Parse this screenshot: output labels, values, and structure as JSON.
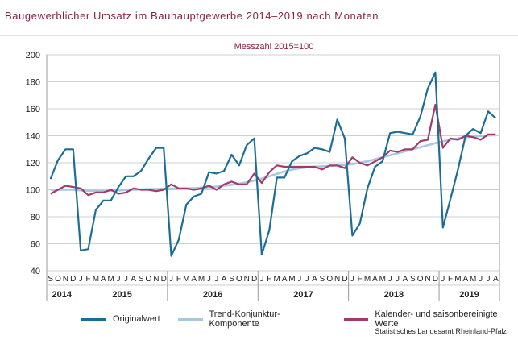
{
  "header": {
    "title": "Baugewerblicher Umsatz im Bauhauptgewerbe 2014–2019 nach Monaten"
  },
  "chart_data": {
    "type": "line",
    "subtitle": "Messzahl 2015=100",
    "ylim": [
      40,
      200
    ],
    "yticks": [
      40,
      60,
      80,
      100,
      120,
      140,
      160,
      180,
      200
    ],
    "grid": true,
    "x": [
      "2014-09",
      "2014-10",
      "2014-11",
      "2014-12",
      "2015-01",
      "2015-02",
      "2015-03",
      "2015-04",
      "2015-05",
      "2015-06",
      "2015-07",
      "2015-08",
      "2015-09",
      "2015-10",
      "2015-11",
      "2015-12",
      "2016-01",
      "2016-02",
      "2016-03",
      "2016-04",
      "2016-05",
      "2016-06",
      "2016-07",
      "2016-08",
      "2016-09",
      "2016-10",
      "2016-11",
      "2016-12",
      "2017-01",
      "2017-02",
      "2017-03",
      "2017-04",
      "2017-05",
      "2017-06",
      "2017-07",
      "2017-08",
      "2017-09",
      "2017-10",
      "2017-11",
      "2017-12",
      "2018-01",
      "2018-02",
      "2018-03",
      "2018-04",
      "2018-05",
      "2018-06",
      "2018-07",
      "2018-08",
      "2018-09",
      "2018-10",
      "2018-11",
      "2018-12",
      "2019-01",
      "2019-02",
      "2019-03",
      "2019-04",
      "2019-05",
      "2019-06",
      "2019-07",
      "2019-08"
    ],
    "month_labels": [
      "S",
      "O",
      "N",
      "D",
      "J",
      "F",
      "M",
      "A",
      "M",
      "J",
      "J",
      "A",
      "S",
      "O",
      "N",
      "D",
      "J",
      "F",
      "M",
      "A",
      "M",
      "J",
      "J",
      "A",
      "S",
      "O",
      "N",
      "D",
      "J",
      "F",
      "M",
      "A",
      "M",
      "J",
      "J",
      "A",
      "S",
      "O",
      "N",
      "D",
      "J",
      "F",
      "M",
      "A",
      "M",
      "J",
      "J",
      "A",
      "S",
      "O",
      "N",
      "D",
      "J",
      "F",
      "M",
      "A",
      "M",
      "J",
      "J",
      "A"
    ],
    "year_groups": [
      {
        "label": "2014",
        "months": 4
      },
      {
        "label": "2015",
        "months": 12
      },
      {
        "label": "2016",
        "months": 12
      },
      {
        "label": "2017",
        "months": 12
      },
      {
        "label": "2018",
        "months": 12
      },
      {
        "label": "2019",
        "months": 8
      }
    ],
    "series": [
      {
        "name": "Originalwert",
        "color": "#1a6e96",
        "values": [
          108,
          122,
          130,
          130,
          55,
          56,
          85,
          92,
          92,
          102,
          110,
          110,
          114,
          123,
          131,
          131,
          51,
          63,
          89,
          95,
          97,
          113,
          112,
          114,
          126,
          118,
          133,
          138,
          52,
          70,
          109,
          109,
          121,
          125,
          127,
          131,
          130,
          128,
          152,
          138,
          66,
          75,
          101,
          117,
          121,
          142,
          143,
          142,
          141,
          154,
          175,
          187,
          72,
          93,
          115,
          140,
          145,
          142,
          158,
          153
        ]
      },
      {
        "name": "Trend-Konjunktur-Komponente",
        "color": "#a6c8e0",
        "values": [
          100,
          100,
          100,
          100,
          99.5,
          99.3,
          99.2,
          99.2,
          99.3,
          99.5,
          99.8,
          100,
          100.3,
          100.5,
          100.6,
          100.7,
          100.8,
          100.9,
          101,
          101.2,
          101.5,
          101.9,
          102.4,
          103,
          103.7,
          104.5,
          105.5,
          106.8,
          108.3,
          110,
          111.8,
          113.5,
          114.9,
          115.9,
          116.6,
          117.1,
          117.4,
          117.6,
          117.9,
          118.3,
          119,
          120,
          121.2,
          122.5,
          124,
          125.5,
          127,
          128.5,
          130,
          131.5,
          133,
          134.5,
          135.8,
          137,
          138,
          138.8,
          139.4,
          139.8,
          140.2,
          140.5
        ]
      },
      {
        "name": "Kalender- und saisonbereinigte Werte",
        "color": "#a33a6b",
        "values": [
          97,
          100,
          103,
          102,
          101,
          96,
          98,
          98,
          100,
          97,
          98,
          101,
          100,
          100,
          99,
          100,
          104,
          101,
          101,
          100,
          101,
          103,
          100,
          104,
          106,
          104,
          104,
          112,
          105,
          113,
          118,
          117,
          117,
          117,
          117,
          117,
          115,
          118,
          118,
          116,
          124,
          120,
          118,
          121,
          124,
          129,
          128,
          130,
          130,
          136,
          137,
          163,
          131,
          138,
          137,
          140,
          139,
          137,
          141,
          141
        ]
      }
    ]
  },
  "footer": {
    "source": "Statistisches Landesamt  Rheinland-Pfalz"
  }
}
